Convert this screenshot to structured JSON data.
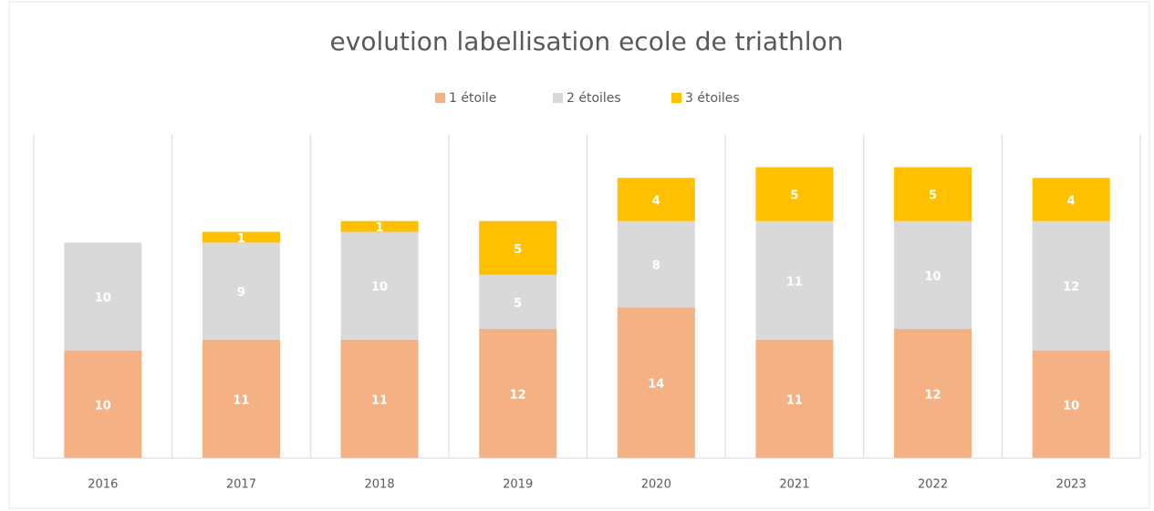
{
  "chart_data": {
    "type": "stacked_bar",
    "title": "evolution labellisation ecole de triathlon",
    "categories": [
      "2016",
      "2017",
      "2018",
      "2019",
      "2020",
      "2021",
      "2022",
      "2023"
    ],
    "series": [
      {
        "name": "1 étoile",
        "color": "#F4B183",
        "values": [
          10,
          11,
          11,
          12,
          14,
          11,
          12,
          10
        ]
      },
      {
        "name": "2 étoiles",
        "color": "#D9D9D9",
        "values": [
          10,
          9,
          10,
          5,
          8,
          11,
          10,
          12
        ]
      },
      {
        "name": "3 étoiles",
        "color": "#FFC000",
        "values": [
          null,
          1,
          1,
          5,
          4,
          5,
          5,
          4
        ]
      }
    ],
    "ylim": [
      0,
      30
    ],
    "legend": "top"
  }
}
